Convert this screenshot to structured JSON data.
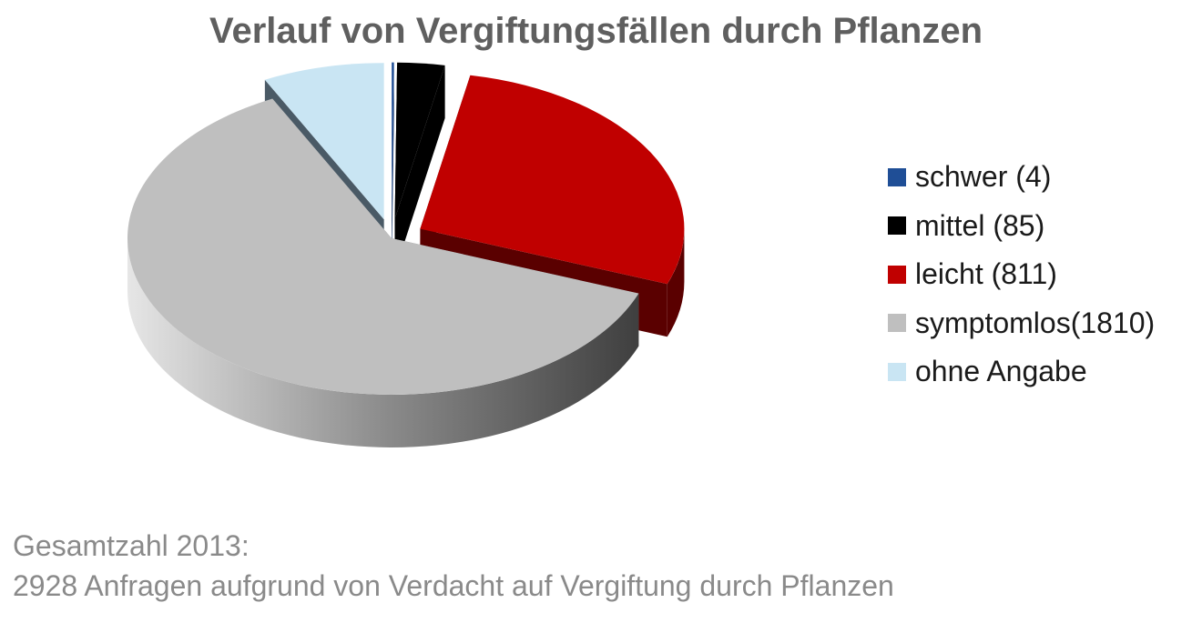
{
  "chart_data": {
    "type": "pie",
    "title": "Verlauf von Vergiftungsfällen durch Pflanzen",
    "legend_position": "right",
    "slices": [
      {
        "label": "schwer (4)",
        "value": 4,
        "color": "#1f4e96",
        "side_color": "#143366"
      },
      {
        "label": "mittel (85)",
        "value": 85,
        "color": "#000000",
        "side_color": "#000000"
      },
      {
        "label": "leicht (811)",
        "value": 811,
        "color": "#c00000",
        "side_color": "#5a0000"
      },
      {
        "label": "symptomlos(1810)",
        "value": 1810,
        "color": "#bfbfbf",
        "side_color": "#7a7a7a"
      },
      {
        "label": "ohne Angabe",
        "value": 218,
        "color": "#c9e5f3",
        "side_color": "#4a5a66"
      }
    ]
  },
  "footnote": {
    "line1": "Gesamtzahl 2013:",
    "line2": "2928 Anfragen aufgrund von Verdacht auf Vergiftung durch Pflanzen"
  }
}
